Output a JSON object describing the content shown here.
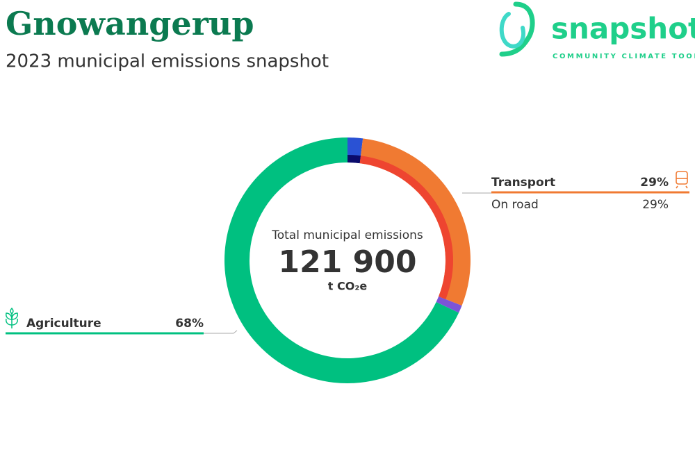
{
  "logo": {
    "name": "snapshot",
    "tagline": "COMMUNITY CLIMATE TOOL"
  },
  "chart_data": {
    "type": "donut",
    "title": "Gnowangerup",
    "subtitle": "2023 municipal emissions snapshot",
    "center_title": "Total municipal emissions",
    "total": {
      "value": 121900,
      "label": "121 900"
    },
    "unit": "t CO₂e",
    "rings": [
      {
        "categories": [
          null,
          "Transport",
          null,
          "Agriculture"
        ],
        "values": [
          2,
          29,
          1,
          68
        ],
        "value_labels": [
          null,
          "29%",
          null,
          "68%"
        ],
        "colors": [
          "#2a52d4",
          "#f07a32",
          "#7b55d6",
          "#00c080"
        ]
      },
      {
        "categories": [
          null,
          "On road"
        ],
        "values": [
          2,
          29
        ],
        "value_labels": [
          null,
          "29%"
        ],
        "colors": [
          "#0b0b6b",
          "#ee4530"
        ]
      }
    ]
  }
}
